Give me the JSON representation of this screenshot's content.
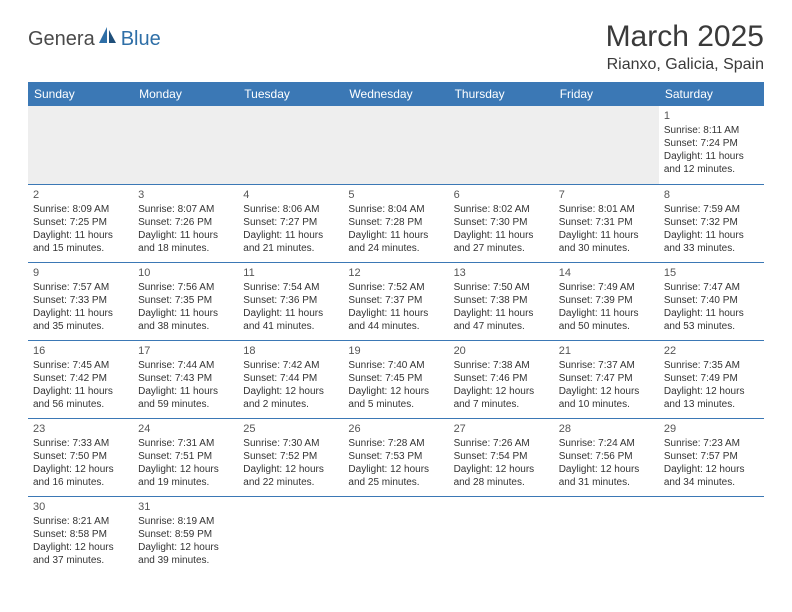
{
  "logo": {
    "part1": "Genera",
    "part2": "Blue"
  },
  "title": "March 2025",
  "location": "Rianxo, Galicia, Spain",
  "colors": {
    "header_bg": "#3b78b5",
    "header_text": "#ffffff",
    "logo_blue": "#2f6fa7",
    "logo_gray": "#4a4a4a",
    "text": "#333333",
    "empty_bg": "#eeeeee"
  },
  "day_headers": [
    "Sunday",
    "Monday",
    "Tuesday",
    "Wednesday",
    "Thursday",
    "Friday",
    "Saturday"
  ],
  "weeks": [
    [
      null,
      null,
      null,
      null,
      null,
      null,
      {
        "n": "1",
        "sr": "Sunrise: 8:11 AM",
        "ss": "Sunset: 7:24 PM",
        "d1": "Daylight: 11 hours",
        "d2": "and 12 minutes."
      }
    ],
    [
      {
        "n": "2",
        "sr": "Sunrise: 8:09 AM",
        "ss": "Sunset: 7:25 PM",
        "d1": "Daylight: 11 hours",
        "d2": "and 15 minutes."
      },
      {
        "n": "3",
        "sr": "Sunrise: 8:07 AM",
        "ss": "Sunset: 7:26 PM",
        "d1": "Daylight: 11 hours",
        "d2": "and 18 minutes."
      },
      {
        "n": "4",
        "sr": "Sunrise: 8:06 AM",
        "ss": "Sunset: 7:27 PM",
        "d1": "Daylight: 11 hours",
        "d2": "and 21 minutes."
      },
      {
        "n": "5",
        "sr": "Sunrise: 8:04 AM",
        "ss": "Sunset: 7:28 PM",
        "d1": "Daylight: 11 hours",
        "d2": "and 24 minutes."
      },
      {
        "n": "6",
        "sr": "Sunrise: 8:02 AM",
        "ss": "Sunset: 7:30 PM",
        "d1": "Daylight: 11 hours",
        "d2": "and 27 minutes."
      },
      {
        "n": "7",
        "sr": "Sunrise: 8:01 AM",
        "ss": "Sunset: 7:31 PM",
        "d1": "Daylight: 11 hours",
        "d2": "and 30 minutes."
      },
      {
        "n": "8",
        "sr": "Sunrise: 7:59 AM",
        "ss": "Sunset: 7:32 PM",
        "d1": "Daylight: 11 hours",
        "d2": "and 33 minutes."
      }
    ],
    [
      {
        "n": "9",
        "sr": "Sunrise: 7:57 AM",
        "ss": "Sunset: 7:33 PM",
        "d1": "Daylight: 11 hours",
        "d2": "and 35 minutes."
      },
      {
        "n": "10",
        "sr": "Sunrise: 7:56 AM",
        "ss": "Sunset: 7:35 PM",
        "d1": "Daylight: 11 hours",
        "d2": "and 38 minutes."
      },
      {
        "n": "11",
        "sr": "Sunrise: 7:54 AM",
        "ss": "Sunset: 7:36 PM",
        "d1": "Daylight: 11 hours",
        "d2": "and 41 minutes."
      },
      {
        "n": "12",
        "sr": "Sunrise: 7:52 AM",
        "ss": "Sunset: 7:37 PM",
        "d1": "Daylight: 11 hours",
        "d2": "and 44 minutes."
      },
      {
        "n": "13",
        "sr": "Sunrise: 7:50 AM",
        "ss": "Sunset: 7:38 PM",
        "d1": "Daylight: 11 hours",
        "d2": "and 47 minutes."
      },
      {
        "n": "14",
        "sr": "Sunrise: 7:49 AM",
        "ss": "Sunset: 7:39 PM",
        "d1": "Daylight: 11 hours",
        "d2": "and 50 minutes."
      },
      {
        "n": "15",
        "sr": "Sunrise: 7:47 AM",
        "ss": "Sunset: 7:40 PM",
        "d1": "Daylight: 11 hours",
        "d2": "and 53 minutes."
      }
    ],
    [
      {
        "n": "16",
        "sr": "Sunrise: 7:45 AM",
        "ss": "Sunset: 7:42 PM",
        "d1": "Daylight: 11 hours",
        "d2": "and 56 minutes."
      },
      {
        "n": "17",
        "sr": "Sunrise: 7:44 AM",
        "ss": "Sunset: 7:43 PM",
        "d1": "Daylight: 11 hours",
        "d2": "and 59 minutes."
      },
      {
        "n": "18",
        "sr": "Sunrise: 7:42 AM",
        "ss": "Sunset: 7:44 PM",
        "d1": "Daylight: 12 hours",
        "d2": "and 2 minutes."
      },
      {
        "n": "19",
        "sr": "Sunrise: 7:40 AM",
        "ss": "Sunset: 7:45 PM",
        "d1": "Daylight: 12 hours",
        "d2": "and 5 minutes."
      },
      {
        "n": "20",
        "sr": "Sunrise: 7:38 AM",
        "ss": "Sunset: 7:46 PM",
        "d1": "Daylight: 12 hours",
        "d2": "and 7 minutes."
      },
      {
        "n": "21",
        "sr": "Sunrise: 7:37 AM",
        "ss": "Sunset: 7:47 PM",
        "d1": "Daylight: 12 hours",
        "d2": "and 10 minutes."
      },
      {
        "n": "22",
        "sr": "Sunrise: 7:35 AM",
        "ss": "Sunset: 7:49 PM",
        "d1": "Daylight: 12 hours",
        "d2": "and 13 minutes."
      }
    ],
    [
      {
        "n": "23",
        "sr": "Sunrise: 7:33 AM",
        "ss": "Sunset: 7:50 PM",
        "d1": "Daylight: 12 hours",
        "d2": "and 16 minutes."
      },
      {
        "n": "24",
        "sr": "Sunrise: 7:31 AM",
        "ss": "Sunset: 7:51 PM",
        "d1": "Daylight: 12 hours",
        "d2": "and 19 minutes."
      },
      {
        "n": "25",
        "sr": "Sunrise: 7:30 AM",
        "ss": "Sunset: 7:52 PM",
        "d1": "Daylight: 12 hours",
        "d2": "and 22 minutes."
      },
      {
        "n": "26",
        "sr": "Sunrise: 7:28 AM",
        "ss": "Sunset: 7:53 PM",
        "d1": "Daylight: 12 hours",
        "d2": "and 25 minutes."
      },
      {
        "n": "27",
        "sr": "Sunrise: 7:26 AM",
        "ss": "Sunset: 7:54 PM",
        "d1": "Daylight: 12 hours",
        "d2": "and 28 minutes."
      },
      {
        "n": "28",
        "sr": "Sunrise: 7:24 AM",
        "ss": "Sunset: 7:56 PM",
        "d1": "Daylight: 12 hours",
        "d2": "and 31 minutes."
      },
      {
        "n": "29",
        "sr": "Sunrise: 7:23 AM",
        "ss": "Sunset: 7:57 PM",
        "d1": "Daylight: 12 hours",
        "d2": "and 34 minutes."
      }
    ],
    [
      {
        "n": "30",
        "sr": "Sunrise: 8:21 AM",
        "ss": "Sunset: 8:58 PM",
        "d1": "Daylight: 12 hours",
        "d2": "and 37 minutes."
      },
      {
        "n": "31",
        "sr": "Sunrise: 8:19 AM",
        "ss": "Sunset: 8:59 PM",
        "d1": "Daylight: 12 hours",
        "d2": "and 39 minutes."
      },
      null,
      null,
      null,
      null,
      null
    ]
  ]
}
